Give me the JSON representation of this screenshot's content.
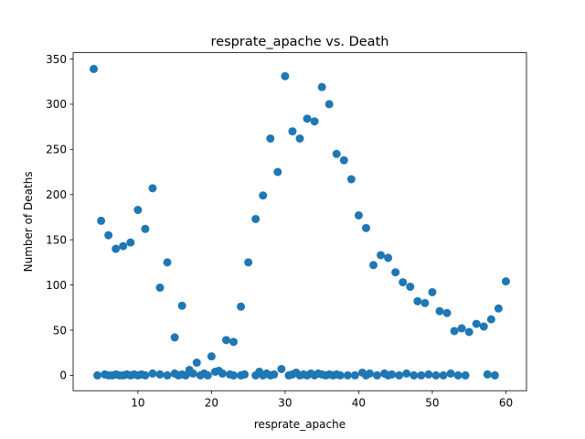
{
  "chart_data": {
    "type": "scatter",
    "title": "resprate_apache vs. Death",
    "xlabel": "resprate_apache",
    "ylabel": "Number of Deaths",
    "xlim": [
      1.2,
      62.8
    ],
    "ylim": [
      -17,
      357
    ],
    "xticks": [
      10,
      20,
      30,
      40,
      50,
      60
    ],
    "yticks": [
      0,
      50,
      100,
      150,
      200,
      250,
      300,
      350
    ],
    "grid": false,
    "legend": "none",
    "marker_color": "#1f77b4",
    "series": [
      {
        "points": [
          [
            4,
            339
          ],
          [
            5,
            171
          ],
          [
            6,
            155
          ],
          [
            7,
            140
          ],
          [
            8,
            143
          ],
          [
            9,
            147
          ],
          [
            10,
            183
          ],
          [
            11,
            162
          ],
          [
            12,
            207
          ],
          [
            13,
            97
          ],
          [
            14,
            125
          ],
          [
            15,
            42
          ],
          [
            16,
            77
          ],
          [
            17,
            6
          ],
          [
            18,
            14
          ],
          [
            20,
            21
          ],
          [
            21,
            5
          ],
          [
            22,
            39
          ],
          [
            23,
            37
          ],
          [
            24,
            76
          ],
          [
            25,
            125
          ],
          [
            26,
            173
          ],
          [
            27,
            199
          ],
          [
            28,
            262
          ],
          [
            29,
            225
          ],
          [
            30,
            331
          ],
          [
            31,
            270
          ],
          [
            32,
            262
          ],
          [
            33,
            284
          ],
          [
            34,
            281
          ],
          [
            35,
            319
          ],
          [
            36,
            300
          ],
          [
            37,
            245
          ],
          [
            38,
            238
          ],
          [
            39,
            217
          ],
          [
            40,
            177
          ],
          [
            41,
            163
          ],
          [
            42,
            122
          ],
          [
            43,
            133
          ],
          [
            44,
            130
          ],
          [
            45,
            114
          ],
          [
            46,
            103
          ],
          [
            47,
            98
          ],
          [
            48,
            82
          ],
          [
            49,
            80
          ],
          [
            50,
            92
          ],
          [
            51,
            71
          ],
          [
            52,
            69
          ],
          [
            53,
            49
          ],
          [
            54,
            52
          ],
          [
            55,
            48
          ],
          [
            56,
            57
          ],
          [
            57,
            54
          ],
          [
            58,
            62
          ],
          [
            59,
            74
          ],
          [
            60,
            104
          ],
          [
            4.5,
            0
          ],
          [
            5.5,
            1
          ],
          [
            6.0,
            0
          ],
          [
            6.5,
            0
          ],
          [
            7.0,
            1
          ],
          [
            7.5,
            0
          ],
          [
            8.0,
            0
          ],
          [
            8.5,
            1
          ],
          [
            9.0,
            0
          ],
          [
            9.5,
            1
          ],
          [
            10.0,
            0
          ],
          [
            10.5,
            1
          ],
          [
            11.0,
            0
          ],
          [
            12.0,
            2
          ],
          [
            13.0,
            1
          ],
          [
            14.0,
            0
          ],
          [
            15.0,
            2
          ],
          [
            15.5,
            0
          ],
          [
            16.0,
            1
          ],
          [
            16.5,
            0
          ],
          [
            17.5,
            2
          ],
          [
            18.5,
            0
          ],
          [
            19.0,
            2
          ],
          [
            19.5,
            0
          ],
          [
            20.5,
            4
          ],
          [
            21.5,
            2
          ],
          [
            22.5,
            1
          ],
          [
            23.0,
            0
          ],
          [
            24.0,
            0
          ],
          [
            24.5,
            1
          ],
          [
            26.0,
            0
          ],
          [
            26.5,
            4
          ],
          [
            27.0,
            0
          ],
          [
            27.5,
            2
          ],
          [
            28.0,
            0
          ],
          [
            28.5,
            1
          ],
          [
            29.5,
            7
          ],
          [
            30.5,
            0
          ],
          [
            31.0,
            1
          ],
          [
            31.5,
            3
          ],
          [
            32.0,
            0
          ],
          [
            32.5,
            1
          ],
          [
            33.0,
            0
          ],
          [
            33.5,
            2
          ],
          [
            34.0,
            0
          ],
          [
            34.5,
            2
          ],
          [
            35.0,
            1
          ],
          [
            35.5,
            0
          ],
          [
            36.0,
            1
          ],
          [
            36.5,
            0
          ],
          [
            37.0,
            1
          ],
          [
            37.5,
            0
          ],
          [
            38.5,
            0
          ],
          [
            39.5,
            0
          ],
          [
            40.5,
            3
          ],
          [
            41.0,
            0
          ],
          [
            41.5,
            2
          ],
          [
            42.5,
            0
          ],
          [
            43.5,
            2
          ],
          [
            44.0,
            0
          ],
          [
            44.5,
            1
          ],
          [
            45.5,
            0
          ],
          [
            46.5,
            2
          ],
          [
            47.5,
            0
          ],
          [
            48.5,
            0
          ],
          [
            49.5,
            1
          ],
          [
            50.5,
            0
          ],
          [
            51.5,
            0
          ],
          [
            52.5,
            2
          ],
          [
            53.5,
            0
          ],
          [
            54.5,
            0
          ],
          [
            57.5,
            1
          ],
          [
            58.5,
            0
          ]
        ]
      }
    ]
  }
}
